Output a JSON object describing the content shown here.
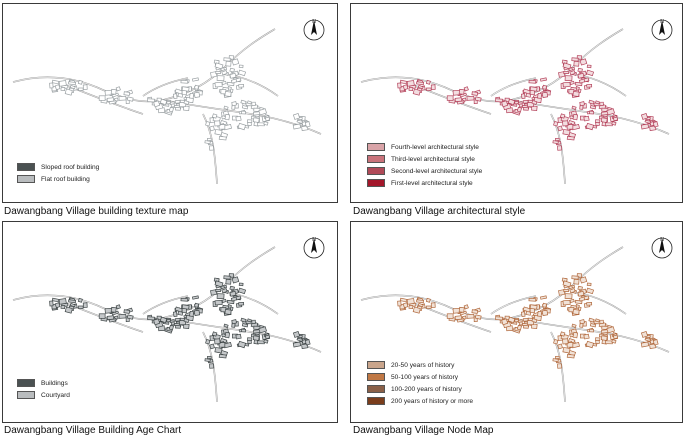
{
  "panels": [
    {
      "caption": "Dawangbang Village building texture map",
      "north_letter": "N",
      "legend": [
        {
          "label": "Sloped roof building",
          "color": "#4a5152"
        },
        {
          "label": "Flat roof building",
          "color": "#b9bcbe"
        }
      ],
      "building_color": "#9aa0a3",
      "building_fill": "#ffffff"
    },
    {
      "caption": "Dawangbang Village architectural style",
      "north_letter": "N",
      "legend": [
        {
          "label": "Fourth-level architectural style",
          "color": "#d9a4a8"
        },
        {
          "label": "Third-level architectural style",
          "color": "#c9737b"
        },
        {
          "label": "Second-level architectural style",
          "color": "#b04a58"
        },
        {
          "label": "First-level architectural style",
          "color": "#a3162a"
        }
      ],
      "building_color": "#b3415a",
      "building_fill": "#f3dde0"
    },
    {
      "caption": "Dawangbang Village Building Age Chart",
      "north_letter": "N",
      "legend": [
        {
          "label": "Buildings",
          "color": "#4a5152"
        },
        {
          "label": "Courtyard",
          "color": "#b9bcbe"
        }
      ],
      "building_color": "#3e4546",
      "building_fill": "#c5c8ca"
    },
    {
      "caption": "Dawangbang Village Node Map",
      "north_letter": "N",
      "legend": [
        {
          "label": "20-50 years of history",
          "color": "#c9a58c"
        },
        {
          "label": "50-100 years of history",
          "color": "#c07845"
        },
        {
          "label": "100-200 years of history",
          "color": "#8a6048"
        },
        {
          "label": "200 years of history or more",
          "color": "#7a3d1c"
        }
      ],
      "building_color": "#b0683c",
      "building_fill": "#f1e2d7"
    }
  ]
}
